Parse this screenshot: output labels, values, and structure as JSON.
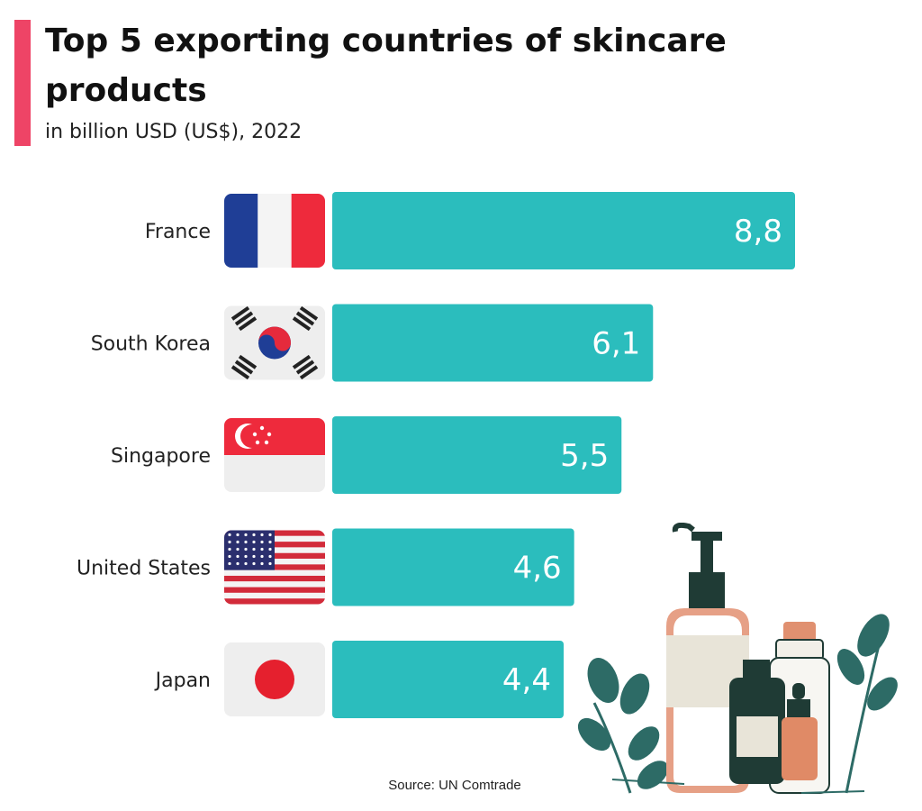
{
  "title": "Top 5 exporting countries of skincare products",
  "subtitle": "in billion USD (US$), 2022",
  "source": "Source: UN Comtrade",
  "colors": {
    "bar": "#2bbdbd",
    "accent": "#ee4466",
    "label": "#ffffff"
  },
  "chart_data": {
    "type": "bar",
    "orientation": "horizontal",
    "title": "Top 5 exporting countries of skincare products",
    "subtitle": "in billion USD (US$), 2022",
    "categories": [
      "France",
      "South Korea",
      "Singapore",
      "United States",
      "Japan"
    ],
    "values": [
      8.8,
      6.1,
      5.5,
      4.6,
      4.4
    ],
    "value_labels": [
      "8,8",
      "6,1",
      "5,5",
      "4,6",
      "4,4"
    ],
    "flags": [
      "france-flag",
      "south-korea-flag",
      "singapore-flag",
      "united-states-flag",
      "japan-flag"
    ],
    "xlim": [
      0,
      8.8
    ],
    "grid": false,
    "legend": "none"
  }
}
